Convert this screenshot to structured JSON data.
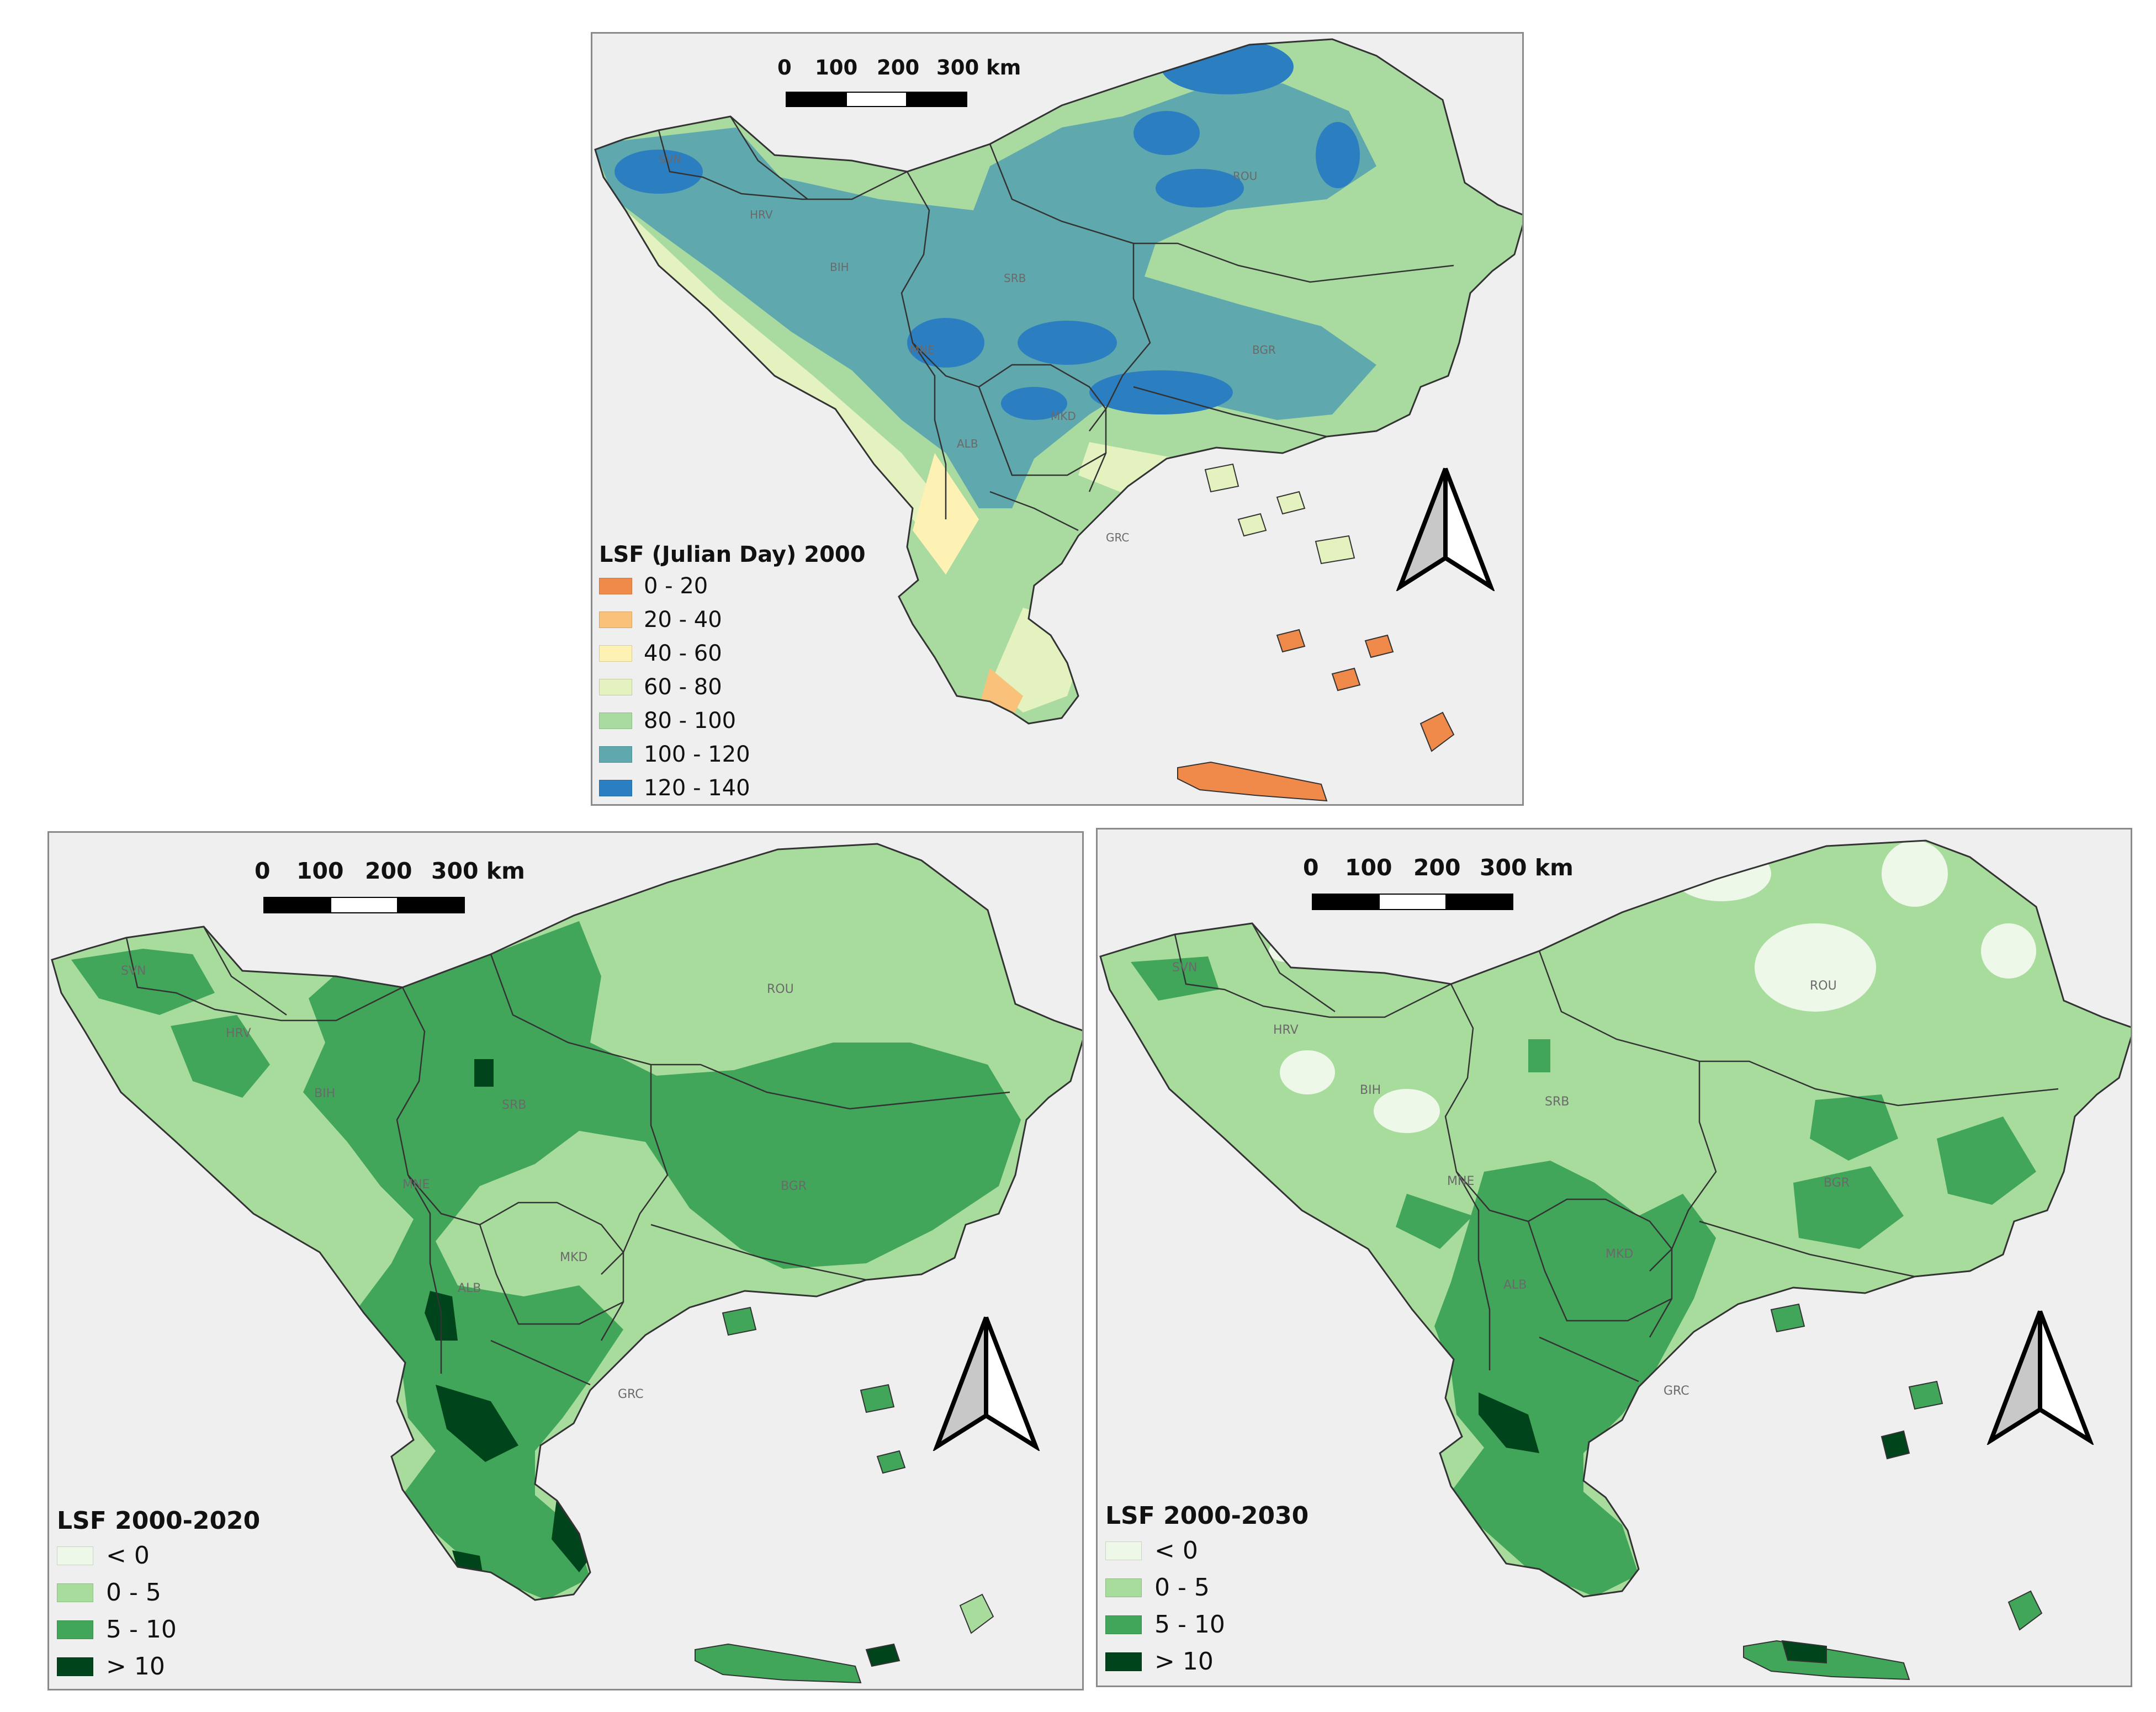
{
  "scale_bar": {
    "labels": [
      "0",
      "100",
      "200",
      "300 km"
    ]
  },
  "colors": {
    "sea": "#efefef",
    "border": "#3a3a3a"
  },
  "country_codes": [
    "SVN",
    "HRV",
    "BIH",
    "SRB",
    "MNE",
    "ALB",
    "MKD",
    "ROU",
    "BGR",
    "GRC"
  ],
  "maps": [
    {
      "id": "lsf-2000",
      "legend_title": "LSF (Julian Day) 2000",
      "classes": [
        {
          "label": "0 - 20",
          "color": "#f08a4b"
        },
        {
          "label": "20 - 40",
          "color": "#f9c17a"
        },
        {
          "label": "40 - 60",
          "color": "#fdf1b3"
        },
        {
          "label": "60 - 80",
          "color": "#e3f2bf"
        },
        {
          "label": "80 - 100",
          "color": "#a9dba0"
        },
        {
          "label": "100 - 120",
          "color": "#5fa8ad"
        },
        {
          "label": "120 - 140",
          "color": "#2b7fc1"
        }
      ]
    },
    {
      "id": "lsf-2000-2020",
      "legend_title": "LSF 2000-2020",
      "classes": [
        {
          "label": "< 0",
          "color": "#edf8e9"
        },
        {
          "label": "0 - 5",
          "color": "#a8dc9d"
        },
        {
          "label": "5 - 10",
          "color": "#41a55a"
        },
        {
          "label": "> 10",
          "color": "#00441b"
        }
      ]
    },
    {
      "id": "lsf-2000-2030",
      "legend_title": "LSF 2000-2030",
      "classes": [
        {
          "label": "< 0",
          "color": "#edf8e9"
        },
        {
          "label": "0 - 5",
          "color": "#a8dc9d"
        },
        {
          "label": "5 - 10",
          "color": "#41a55a"
        },
        {
          "label": "> 10",
          "color": "#00441b"
        }
      ]
    }
  ]
}
